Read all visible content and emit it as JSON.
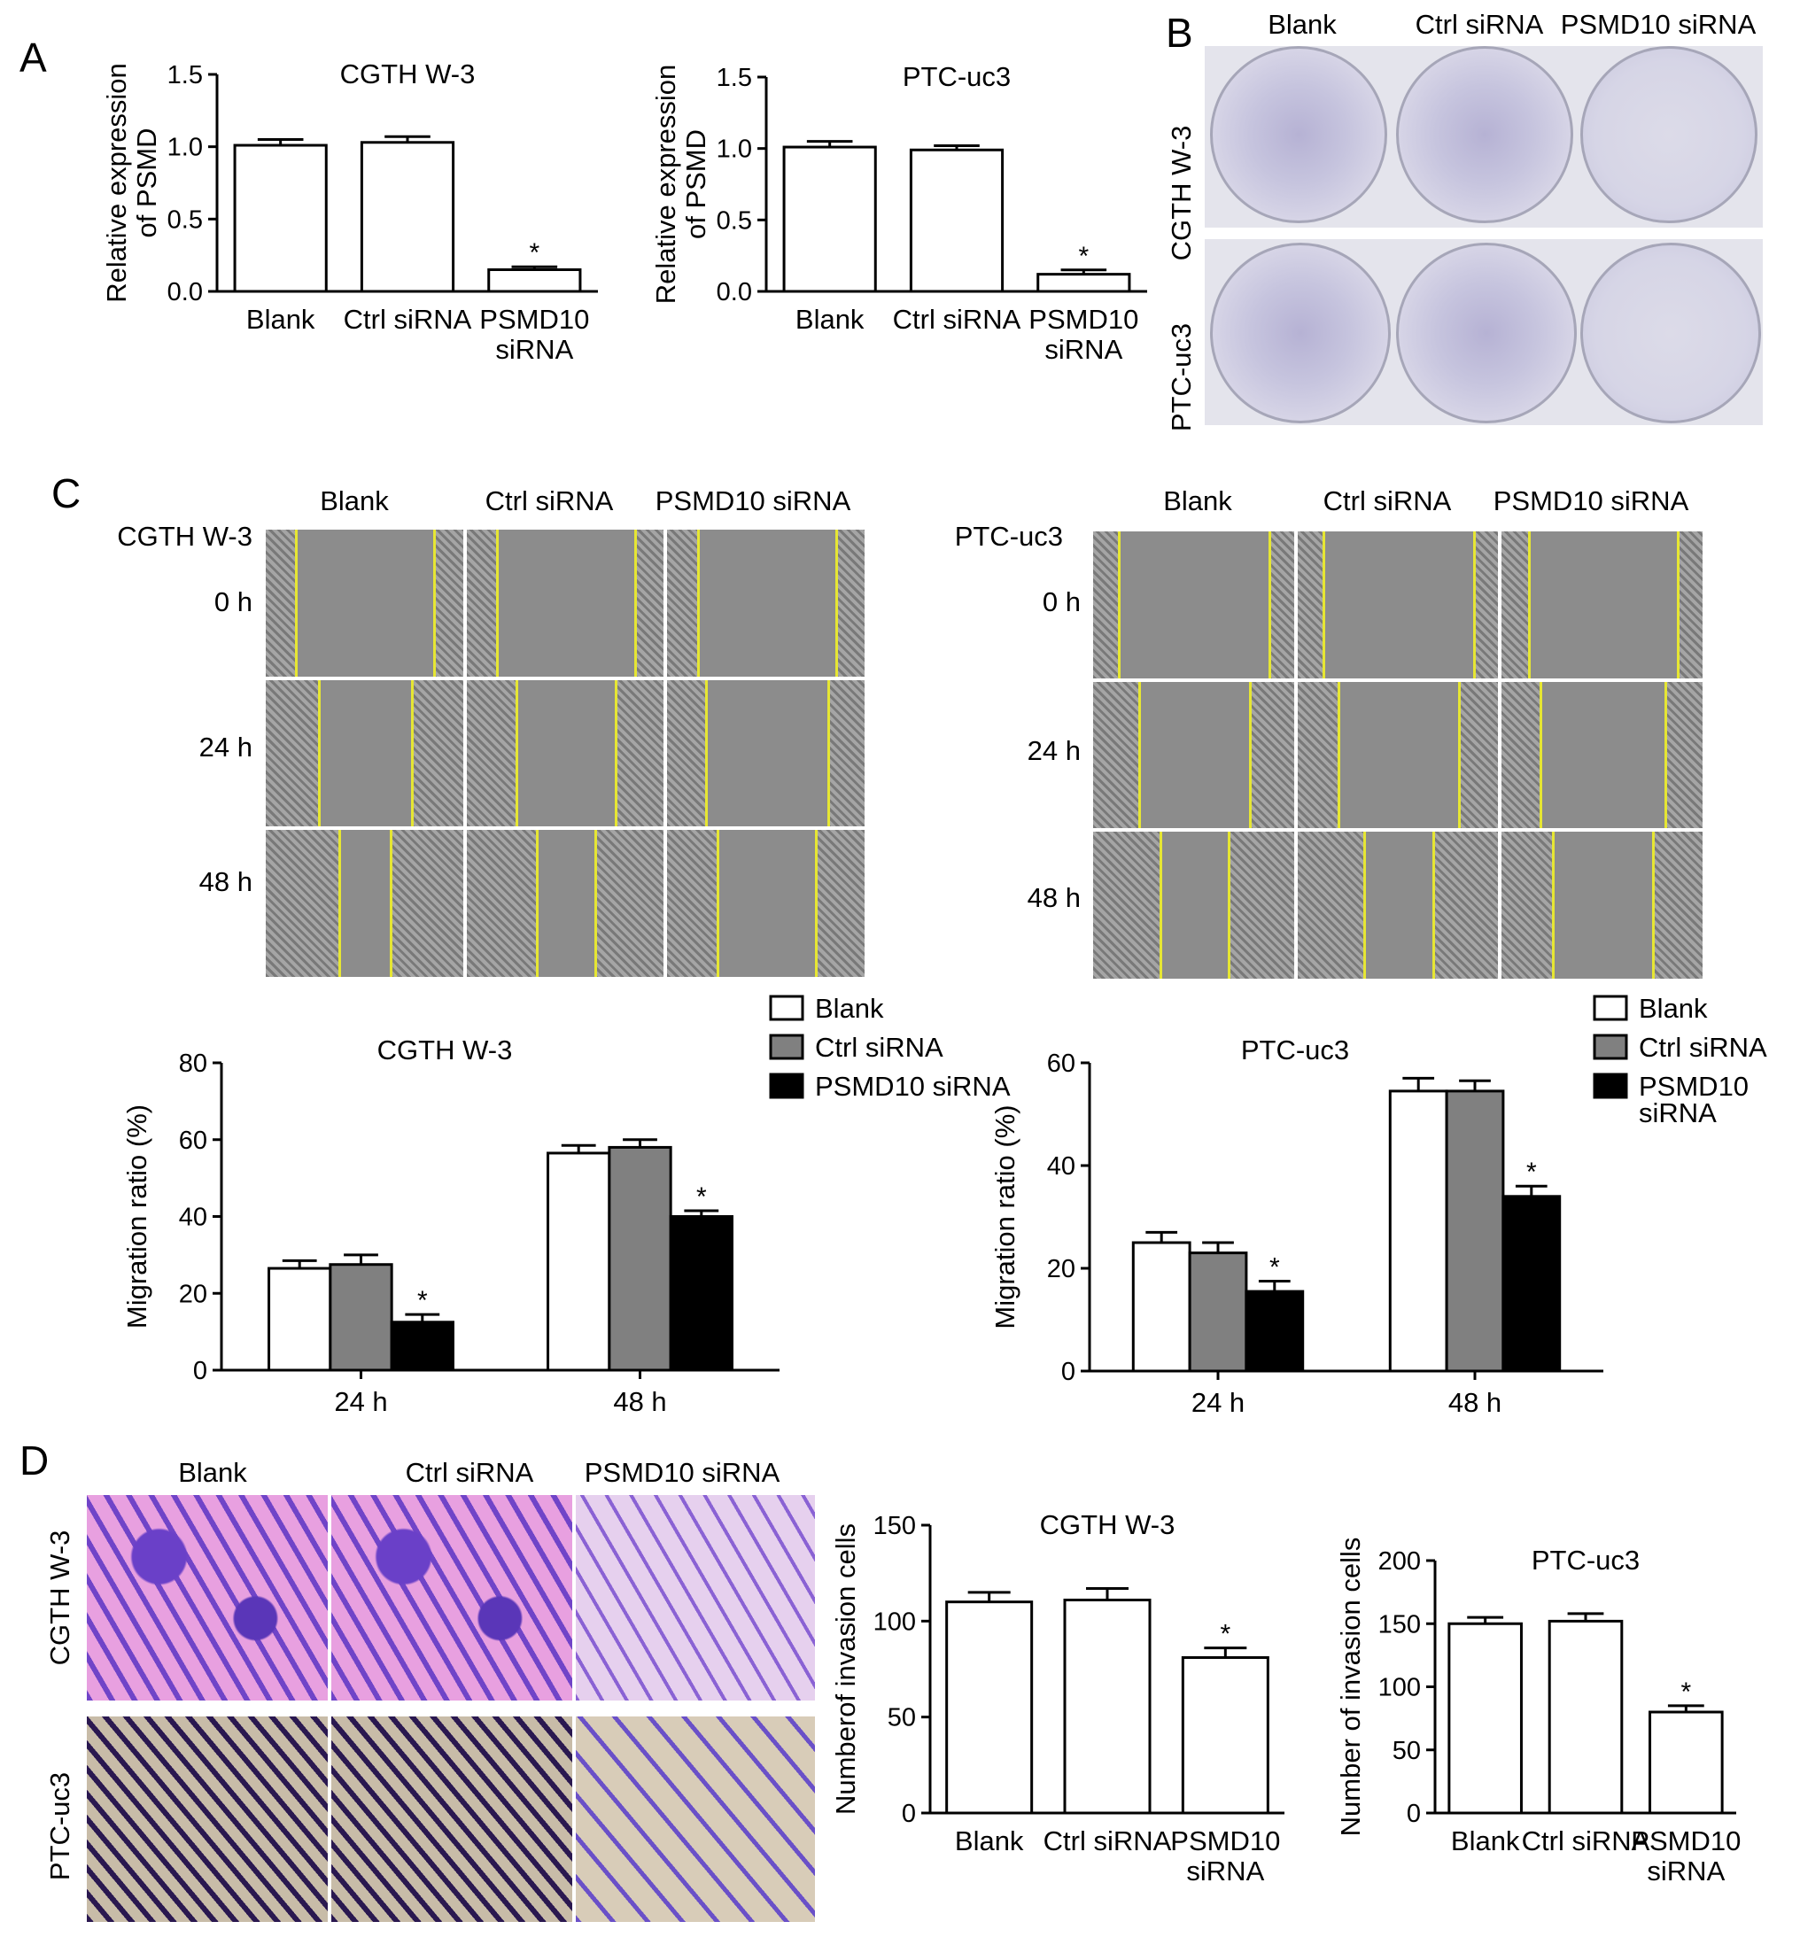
{
  "panel_letters": {
    "a": "A",
    "b": "B",
    "c": "C",
    "d": "D"
  },
  "panel_b": {
    "columns": [
      "Blank",
      "Ctrl siRNA",
      "PSMD10 siRNA"
    ],
    "rows": [
      "CGTH W-3",
      "PTC-uc3"
    ]
  },
  "panel_c": {
    "left": {
      "cell_line": "CGTH W-3",
      "columns": [
        "Blank",
        "Ctrl siRNA",
        "PSMD10 siRNA"
      ],
      "rows": [
        "0 h",
        "24 h",
        "48 h"
      ]
    },
    "right": {
      "cell_line": "PTC-uc3",
      "columns": [
        "Blank",
        "Ctrl siRNA",
        "PSMD10 siRNA"
      ],
      "rows": [
        "0 h",
        "24 h",
        "48 h"
      ]
    }
  },
  "panel_d": {
    "columns": [
      "Blank",
      "Ctrl siRNA",
      "PSMD10 siRNA"
    ],
    "rows": [
      "CGTH W-3",
      "PTC-uc3"
    ]
  },
  "colors": {
    "white": "#ffffff",
    "grey": "#808080",
    "black": "#000000"
  },
  "chart_data": [
    {
      "id": "A1",
      "type": "bar",
      "title": "CGTH W-3",
      "categories": [
        "Blank",
        "Ctrl siRNA",
        "PSMD10\nsiRNA"
      ],
      "values": [
        1.01,
        1.03,
        0.15
      ],
      "errors": [
        0.04,
        0.04,
        0.02
      ],
      "significance": [
        "",
        "",
        "*"
      ],
      "ylabel": "Relative expression\nof PSMD",
      "ylim": [
        0,
        1.5
      ],
      "yticks": [
        "0.0",
        "0.5",
        "1.0",
        "1.5"
      ]
    },
    {
      "id": "A2",
      "type": "bar",
      "title": "PTC-uc3",
      "categories": [
        "Blank",
        "Ctrl siRNA",
        "PSMD10\nsiRNA"
      ],
      "values": [
        1.01,
        0.99,
        0.12
      ],
      "errors": [
        0.04,
        0.03,
        0.03
      ],
      "significance": [
        "",
        "",
        "*"
      ],
      "ylabel": "Relative expression\nof PSMD",
      "ylim": [
        0,
        1.5
      ],
      "yticks": [
        "0.0",
        "0.5",
        "1.0",
        "1.5"
      ]
    },
    {
      "id": "C1",
      "type": "bar",
      "title": "CGTH W-3",
      "categories": [
        "24 h",
        "48 h"
      ],
      "series": [
        {
          "name": "Blank",
          "values": [
            26.5,
            56.5
          ],
          "errors": [
            2,
            2
          ],
          "significance": [
            "",
            ""
          ]
        },
        {
          "name": "Ctrl siRNA",
          "values": [
            27.5,
            58
          ],
          "errors": [
            2.5,
            2
          ],
          "significance": [
            "",
            ""
          ]
        },
        {
          "name": "PSMD10 siRNA",
          "values": [
            12.5,
            40
          ],
          "errors": [
            2,
            1.5
          ],
          "significance": [
            "*",
            "*"
          ]
        }
      ],
      "ylabel": "Migration ratio (%)",
      "ylim": [
        0,
        80
      ],
      "yticks": [
        "0",
        "20",
        "40",
        "60",
        "80"
      ],
      "legend": "top-right"
    },
    {
      "id": "C2",
      "type": "bar",
      "title": "PTC-uc3",
      "categories": [
        "24 h",
        "48 h"
      ],
      "series": [
        {
          "name": "Blank",
          "values": [
            25,
            54.5
          ],
          "errors": [
            2,
            2.5
          ],
          "significance": [
            "",
            ""
          ]
        },
        {
          "name": "Ctrl siRNA",
          "values": [
            23,
            54.5
          ],
          "errors": [
            2,
            2
          ],
          "significance": [
            "",
            ""
          ]
        },
        {
          "name": "PSMD10\nsiRNA",
          "values": [
            15.5,
            34
          ],
          "errors": [
            2,
            2
          ],
          "significance": [
            "*",
            "*"
          ]
        }
      ],
      "ylabel": "Migration ratio (%)",
      "ylim": [
        0,
        60
      ],
      "yticks": [
        "0",
        "20",
        "40",
        "60"
      ],
      "legend": "top-right"
    },
    {
      "id": "D1",
      "type": "bar",
      "title": "CGTH W-3",
      "categories": [
        "Blank",
        "Ctrl siRNA",
        "PSMD10\nsiRNA"
      ],
      "values": [
        110,
        111,
        81
      ],
      "errors": [
        5,
        6,
        5
      ],
      "significance": [
        "",
        "",
        "*"
      ],
      "ylabel": "Numberof invasion cells",
      "ylim": [
        0,
        150
      ],
      "yticks": [
        "0",
        "50",
        "100",
        "150"
      ]
    },
    {
      "id": "D2",
      "type": "bar",
      "title": "PTC-uc3",
      "categories": [
        "Blank",
        "Ctrl siRNA",
        "PSMD10\nsiRNA"
      ],
      "values": [
        150,
        152,
        80
      ],
      "errors": [
        5,
        6,
        5
      ],
      "significance": [
        "",
        "",
        "*"
      ],
      "ylabel": "Number of invasion cells",
      "ylim": [
        0,
        200
      ],
      "yticks": [
        "0",
        "50",
        "100",
        "150",
        "200"
      ]
    }
  ]
}
